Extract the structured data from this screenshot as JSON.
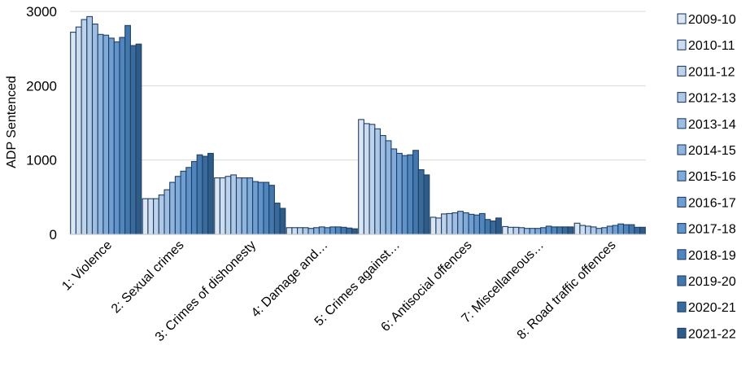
{
  "chart_data": {
    "type": "bar",
    "title": "",
    "xlabel": "",
    "ylabel": "ADP Sentenced",
    "ylim": [
      0,
      3000
    ],
    "yticks": [
      0,
      1000,
      2000,
      3000
    ],
    "grid": true,
    "legend_position": "right",
    "categories": [
      "1: Violence",
      "2: Sexual crimes",
      "3: Crimes of dishonesty",
      "4: Damage and…",
      "5: Crimes against…",
      "6: Antisocial offences",
      "7: Miscellaneous…",
      "8: Road traffic offences"
    ],
    "series": [
      {
        "name": "2009-10",
        "color": "#dce6f2",
        "values": [
          2720,
          480,
          760,
          90,
          1545,
          230,
          105,
          150
        ]
      },
      {
        "name": "2010-11",
        "color": "#cddcee",
        "values": [
          2790,
          480,
          760,
          90,
          1490,
          220,
          95,
          120
        ]
      },
      {
        "name": "2011-12",
        "color": "#bed2ea",
        "values": [
          2890,
          480,
          780,
          90,
          1480,
          275,
          95,
          110
        ]
      },
      {
        "name": "2012-13",
        "color": "#aec8e6",
        "values": [
          2930,
          530,
          800,
          90,
          1420,
          280,
          90,
          100
        ]
      },
      {
        "name": "2013-14",
        "color": "#9fbee2",
        "values": [
          2830,
          600,
          760,
          80,
          1330,
          290,
          80,
          80
        ]
      },
      {
        "name": "2014-15",
        "color": "#8fb4dd",
        "values": [
          2690,
          700,
          760,
          90,
          1260,
          310,
          80,
          90
        ]
      },
      {
        "name": "2015-16",
        "color": "#80aad8",
        "values": [
          2680,
          780,
          760,
          100,
          1150,
          290,
          80,
          110
        ]
      },
      {
        "name": "2016-17",
        "color": "#6f9fd2",
        "values": [
          2640,
          850,
          710,
          90,
          1090,
          270,
          90,
          120
        ]
      },
      {
        "name": "2017-18",
        "color": "#5f93c9",
        "values": [
          2590,
          900,
          700,
          100,
          1060,
          260,
          110,
          140
        ]
      },
      {
        "name": "2018-19",
        "color": "#5086bd",
        "values": [
          2650,
          980,
          700,
          100,
          1070,
          280,
          100,
          130
        ]
      },
      {
        "name": "2019-20",
        "color": "#4378ad",
        "values": [
          2810,
          1070,
          660,
          95,
          1130,
          200,
          100,
          130
        ]
      },
      {
        "name": "2020-21",
        "color": "#386a9b",
        "values": [
          2540,
          1050,
          420,
          85,
          870,
          180,
          100,
          95
        ]
      },
      {
        "name": "2021-22",
        "color": "#2f5b87",
        "values": [
          2560,
          1090,
          350,
          75,
          800,
          220,
          100,
          95
        ]
      }
    ]
  }
}
